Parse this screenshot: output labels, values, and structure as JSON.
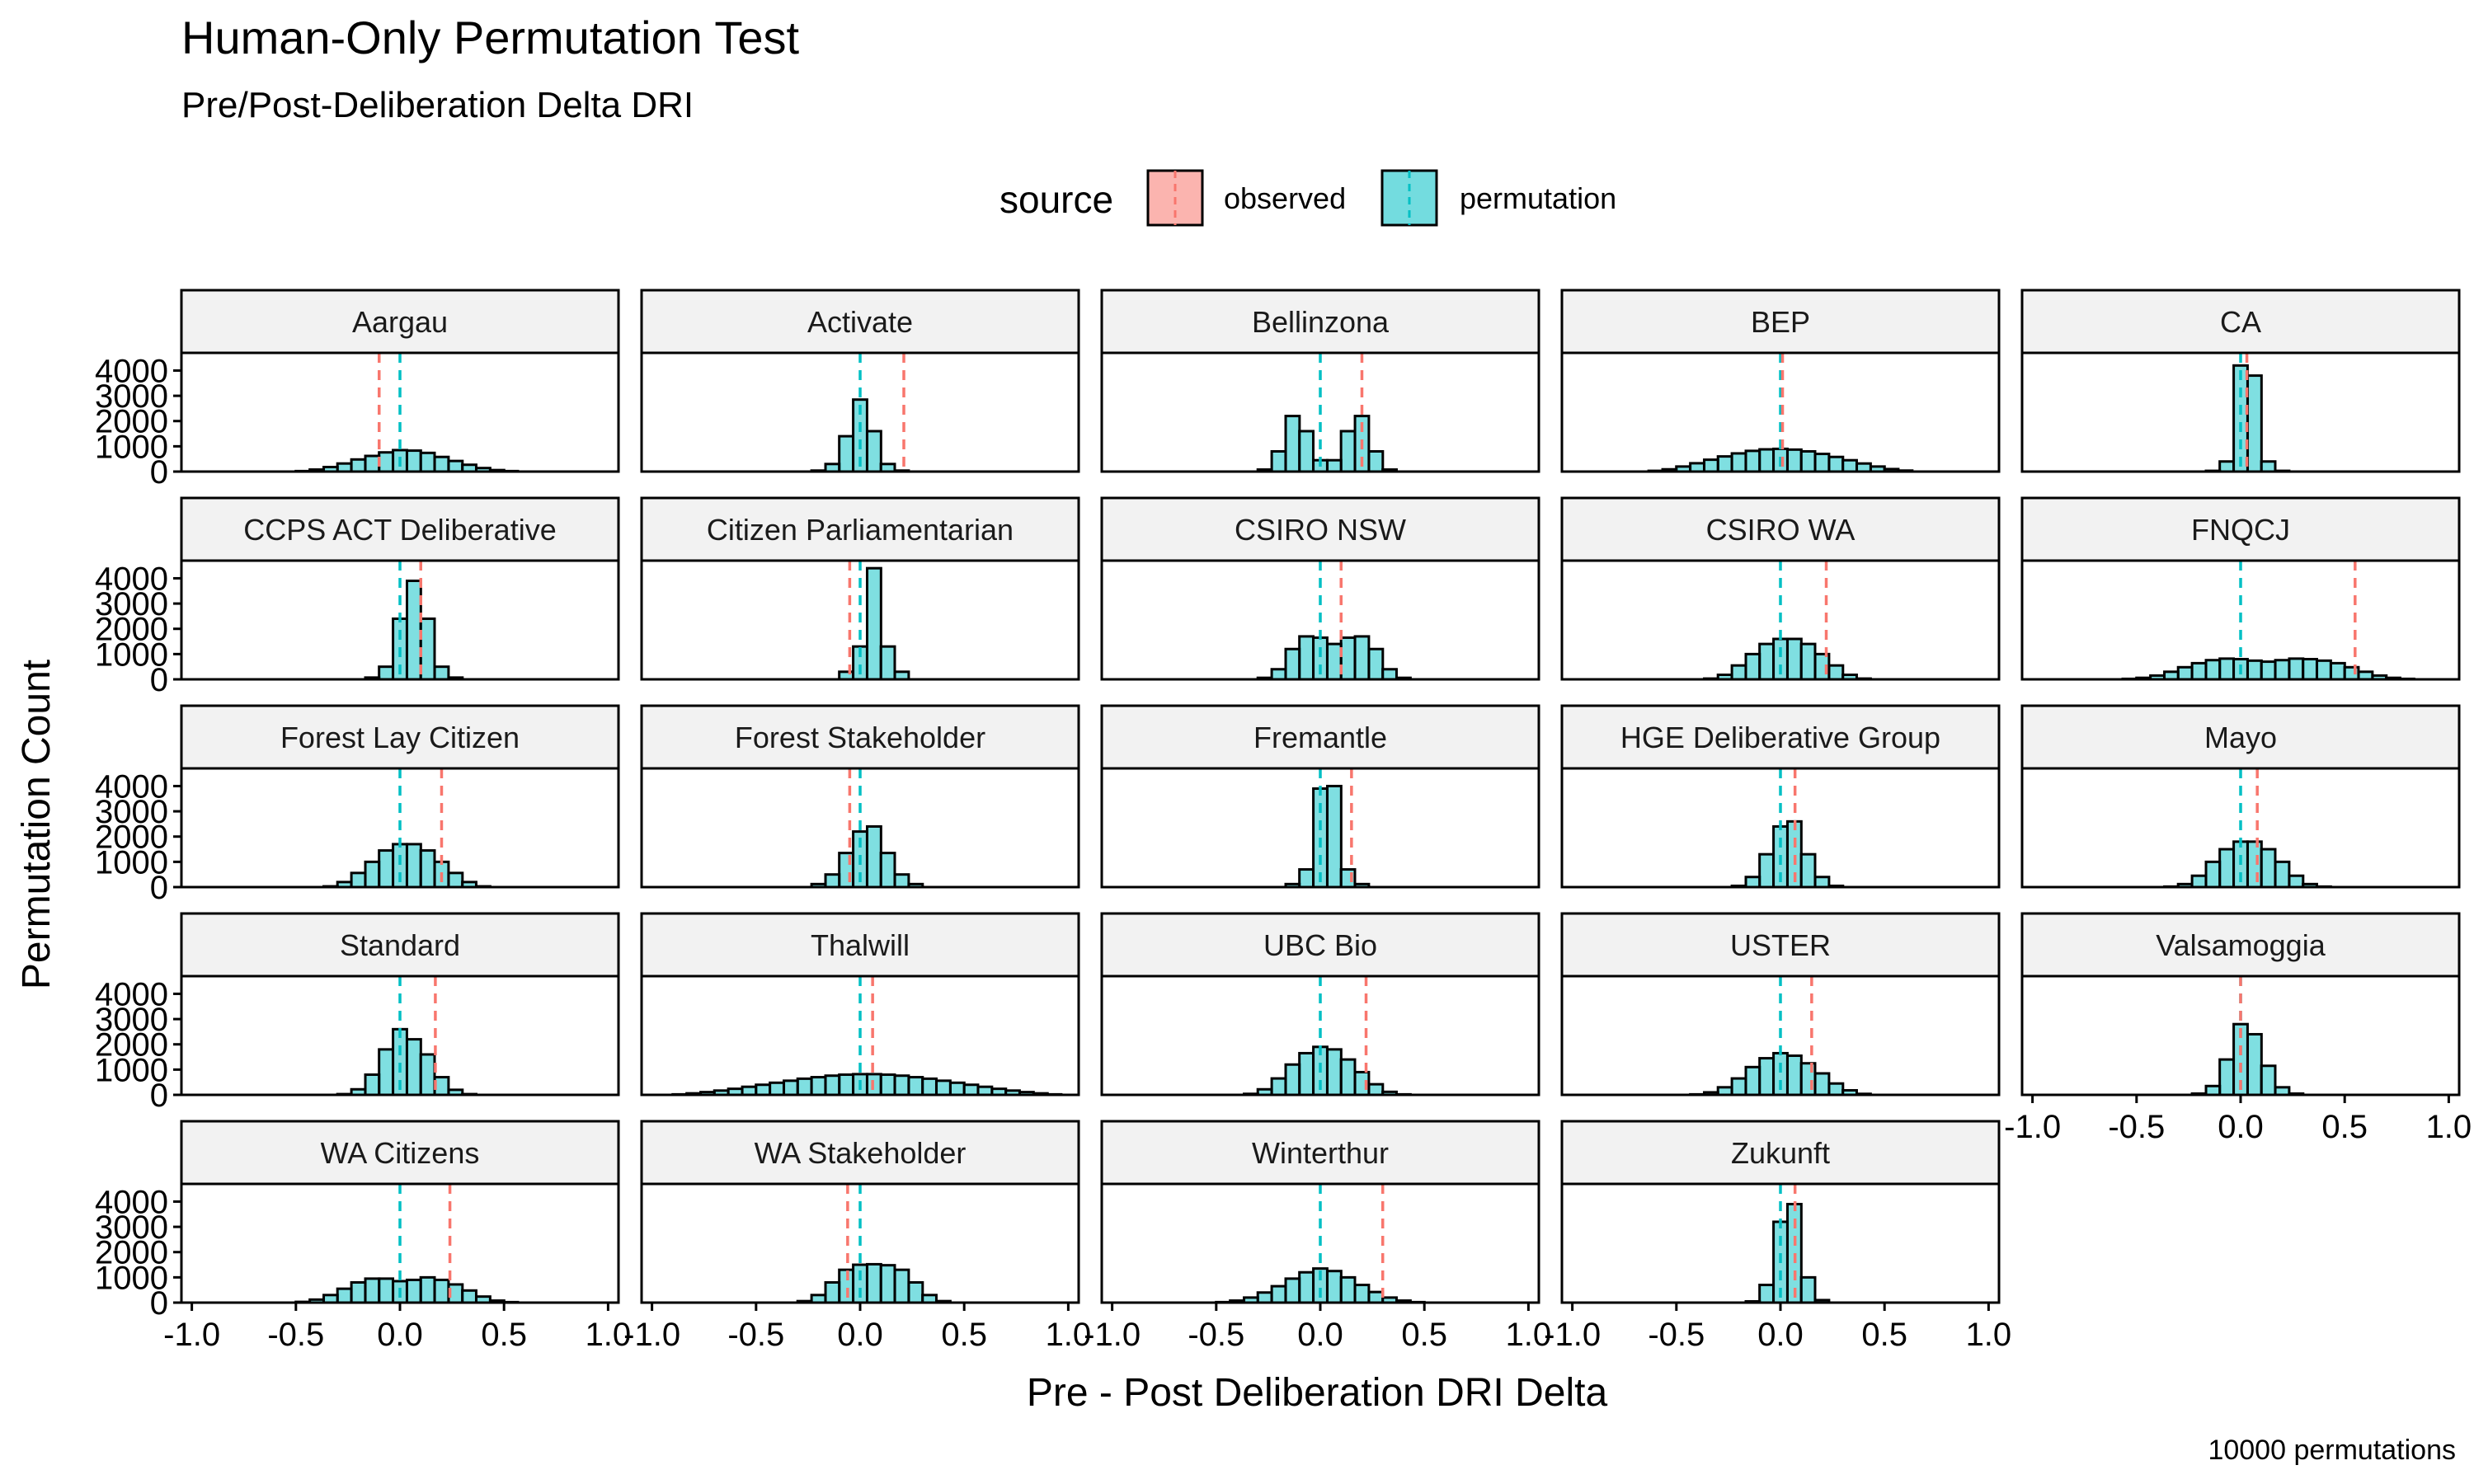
{
  "title": "Human-Only Permutation Test",
  "subtitle": "Pre/Post-Deliberation Delta DRI",
  "caption": "10000 permutations",
  "legend": {
    "title": "source",
    "items": [
      {
        "label": "observed",
        "fill": "#F8766D"
      },
      {
        "label": "permutation",
        "fill": "#00BFC4"
      }
    ]
  },
  "colors": {
    "observed": "#F8766D",
    "permutation": "#00BFC4",
    "bar_outline": "#000000",
    "strip_background": "#F2F2F2"
  },
  "chart_data": {
    "type": "histogram",
    "facet_layout": {
      "ncol": 5,
      "nrow": 5
    },
    "xlabel": "Pre - Post Deliberation DRI Delta",
    "ylabel": "Permutation Count",
    "xlim": [
      -1.05,
      1.05
    ],
    "ylim": [
      0,
      4700
    ],
    "x_ticks": [
      -1.0,
      -0.5,
      0.0,
      0.5,
      1.0
    ],
    "x_tick_labels": [
      "-1.0",
      "-0.5",
      "0.0",
      "0.5",
      "1.0"
    ],
    "y_ticks": [
      0,
      1000,
      2000,
      3000,
      4000
    ],
    "y_tick_labels": [
      "0",
      "1000",
      "2000",
      "3000",
      "4000"
    ],
    "bin_width": 0.0667,
    "bin_centers": [
      -1.0,
      -0.933,
      -0.867,
      -0.8,
      -0.733,
      -0.667,
      -0.6,
      -0.533,
      -0.467,
      -0.4,
      -0.333,
      -0.267,
      -0.2,
      -0.133,
      -0.067,
      0.0,
      0.067,
      0.133,
      0.2,
      0.267,
      0.333,
      0.4,
      0.467,
      0.533,
      0.6,
      0.667,
      0.733,
      0.8,
      0.867,
      0.933,
      1.0
    ],
    "facets": [
      {
        "name": "Aargau",
        "observed": -0.1,
        "permutation_mean": 0.0,
        "counts": [
          0,
          0,
          0,
          0,
          0,
          0,
          0,
          0,
          20,
          80,
          180,
          320,
          480,
          620,
          760,
          850,
          830,
          740,
          580,
          420,
          270,
          140,
          60,
          20,
          0,
          0,
          0,
          0,
          0,
          0,
          0
        ]
      },
      {
        "name": "Activate",
        "observed": 0.21,
        "permutation_mean": 0.0,
        "counts": [
          0,
          0,
          0,
          0,
          0,
          0,
          0,
          0,
          0,
          0,
          0,
          0,
          40,
          300,
          1400,
          2850,
          1600,
          300,
          40,
          0,
          0,
          0,
          0,
          0,
          0,
          0,
          0,
          0,
          0,
          0,
          0
        ]
      },
      {
        "name": "Bellinzona",
        "observed": 0.2,
        "permutation_mean": 0.0,
        "counts": [
          0,
          0,
          0,
          0,
          0,
          0,
          0,
          0,
          0,
          0,
          0,
          80,
          800,
          2200,
          1600,
          450,
          450,
          1600,
          2200,
          800,
          80,
          0,
          0,
          0,
          0,
          0,
          0,
          0,
          0,
          0,
          0
        ]
      },
      {
        "name": "BEP",
        "observed": 0.01,
        "permutation_mean": 0.0,
        "counts": [
          0,
          0,
          0,
          0,
          0,
          0,
          30,
          90,
          200,
          330,
          470,
          600,
          720,
          820,
          880,
          900,
          870,
          800,
          700,
          580,
          450,
          320,
          200,
          100,
          40,
          0,
          0,
          0,
          0,
          0,
          0
        ]
      },
      {
        "name": "CA",
        "observed": 0.03,
        "permutation_mean": 0.0,
        "counts": [
          0,
          0,
          0,
          0,
          0,
          0,
          0,
          0,
          0,
          0,
          0,
          0,
          0,
          30,
          400,
          4200,
          3800,
          400,
          30,
          0,
          0,
          0,
          0,
          0,
          0,
          0,
          0,
          0,
          0,
          0,
          0
        ]
      },
      {
        "name": "CCPS ACT Deliberative",
        "observed": 0.1,
        "permutation_mean": 0.0,
        "counts": [
          0,
          0,
          0,
          0,
          0,
          0,
          0,
          0,
          0,
          0,
          0,
          0,
          0,
          70,
          500,
          2400,
          3900,
          2400,
          500,
          70,
          0,
          0,
          0,
          0,
          0,
          0,
          0,
          0,
          0,
          0,
          0
        ]
      },
      {
        "name": "Citizen Parliamentarian",
        "observed": -0.05,
        "permutation_mean": 0.0,
        "counts": [
          0,
          0,
          0,
          0,
          0,
          0,
          0,
          0,
          0,
          0,
          0,
          0,
          0,
          0,
          300,
          1300,
          4400,
          1300,
          300,
          0,
          0,
          0,
          0,
          0,
          0,
          0,
          0,
          0,
          0,
          0,
          0
        ]
      },
      {
        "name": "CSIRO NSW",
        "observed": 0.1,
        "permutation_mean": 0.0,
        "counts": [
          0,
          0,
          0,
          0,
          0,
          0,
          0,
          0,
          0,
          0,
          0,
          60,
          400,
          1200,
          1700,
          1650,
          1400,
          1650,
          1700,
          1200,
          400,
          60,
          0,
          0,
          0,
          0,
          0,
          0,
          0,
          0,
          0
        ]
      },
      {
        "name": "CSIRO WA",
        "observed": 0.22,
        "permutation_mean": 0.0,
        "counts": [
          0,
          0,
          0,
          0,
          0,
          0,
          0,
          0,
          0,
          0,
          30,
          180,
          550,
          1000,
          1400,
          1600,
          1600,
          1400,
          1000,
          550,
          180,
          30,
          0,
          0,
          0,
          0,
          0,
          0,
          0,
          0,
          0
        ]
      },
      {
        "name": "FNQCJ",
        "observed": 0.55,
        "permutation_mean": 0.0,
        "counts": [
          0,
          0,
          0,
          0,
          0,
          0,
          0,
          20,
          60,
          150,
          300,
          480,
          640,
          760,
          820,
          800,
          740,
          700,
          760,
          820,
          800,
          740,
          640,
          480,
          300,
          150,
          60,
          20,
          0,
          0,
          0
        ]
      },
      {
        "name": "Forest Lay Citizen",
        "observed": 0.2,
        "permutation_mean": 0.0,
        "counts": [
          0,
          0,
          0,
          0,
          0,
          0,
          0,
          0,
          0,
          0,
          30,
          200,
          560,
          1000,
          1450,
          1700,
          1700,
          1450,
          1000,
          560,
          200,
          30,
          0,
          0,
          0,
          0,
          0,
          0,
          0,
          0,
          0
        ]
      },
      {
        "name": "Forest Stakeholder",
        "observed": -0.05,
        "permutation_mean": 0.0,
        "counts": [
          0,
          0,
          0,
          0,
          0,
          0,
          0,
          0,
          0,
          0,
          0,
          0,
          120,
          500,
          1350,
          2200,
          2400,
          1350,
          500,
          120,
          0,
          0,
          0,
          0,
          0,
          0,
          0,
          0,
          0,
          0,
          0
        ]
      },
      {
        "name": "Fremantle",
        "observed": 0.15,
        "permutation_mean": 0.0,
        "counts": [
          0,
          0,
          0,
          0,
          0,
          0,
          0,
          0,
          0,
          0,
          0,
          0,
          0,
          120,
          700,
          3900,
          4000,
          700,
          120,
          0,
          0,
          0,
          0,
          0,
          0,
          0,
          0,
          0,
          0,
          0,
          0
        ]
      },
      {
        "name": "HGE Deliberative Group",
        "observed": 0.07,
        "permutation_mean": 0.0,
        "counts": [
          0,
          0,
          0,
          0,
          0,
          0,
          0,
          0,
          0,
          0,
          0,
          0,
          50,
          400,
          1300,
          2400,
          2600,
          1300,
          400,
          50,
          0,
          0,
          0,
          0,
          0,
          0,
          0,
          0,
          0,
          0,
          0
        ]
      },
      {
        "name": "Mayo",
        "observed": 0.08,
        "permutation_mean": 0.0,
        "counts": [
          0,
          0,
          0,
          0,
          0,
          0,
          0,
          0,
          0,
          0,
          20,
          120,
          450,
          1000,
          1500,
          1800,
          1800,
          1500,
          1000,
          450,
          120,
          20,
          0,
          0,
          0,
          0,
          0,
          0,
          0,
          0,
          0
        ]
      },
      {
        "name": "Standard",
        "observed": 0.17,
        "permutation_mean": 0.0,
        "counts": [
          0,
          0,
          0,
          0,
          0,
          0,
          0,
          0,
          0,
          0,
          0,
          30,
          220,
          800,
          1800,
          2600,
          2200,
          1600,
          700,
          200,
          30,
          0,
          0,
          0,
          0,
          0,
          0,
          0,
          0,
          0,
          0
        ]
      },
      {
        "name": "Thalwill",
        "observed": 0.06,
        "permutation_mean": 0.0,
        "counts": [
          0,
          0,
          20,
          60,
          110,
          170,
          240,
          320,
          400,
          480,
          560,
          640,
          700,
          760,
          800,
          820,
          820,
          800,
          760,
          700,
          640,
          560,
          480,
          400,
          320,
          240,
          170,
          110,
          60,
          20,
          0
        ]
      },
      {
        "name": "UBC Bio",
        "observed": 0.22,
        "permutation_mean": 0.0,
        "counts": [
          0,
          0,
          0,
          0,
          0,
          0,
          0,
          0,
          0,
          0,
          40,
          220,
          650,
          1200,
          1650,
          1900,
          1800,
          1400,
          900,
          420,
          120,
          20,
          0,
          0,
          0,
          0,
          0,
          0,
          0,
          0,
          0
        ]
      },
      {
        "name": "USTER",
        "observed": 0.15,
        "permutation_mean": 0.0,
        "counts": [
          0,
          0,
          0,
          0,
          0,
          0,
          0,
          0,
          0,
          20,
          100,
          300,
          650,
          1100,
          1450,
          1650,
          1550,
          1250,
          850,
          450,
          180,
          40,
          0,
          0,
          0,
          0,
          0,
          0,
          0,
          0,
          0
        ]
      },
      {
        "name": "Valsamoggia",
        "observed": 0.0,
        "permutation_mean": 0.0,
        "counts": [
          0,
          0,
          0,
          0,
          0,
          0,
          0,
          0,
          0,
          0,
          0,
          0,
          50,
          350,
          1400,
          2800,
          2400,
          1150,
          300,
          50,
          0,
          0,
          0,
          0,
          0,
          0,
          0,
          0,
          0,
          0,
          0
        ]
      },
      {
        "name": "WA Citizens",
        "observed": 0.24,
        "permutation_mean": 0.0,
        "counts": [
          0,
          0,
          0,
          0,
          0,
          0,
          0,
          0,
          30,
          120,
          300,
          550,
          800,
          950,
          950,
          850,
          900,
          1000,
          900,
          720,
          480,
          240,
          80,
          20,
          0,
          0,
          0,
          0,
          0,
          0,
          0
        ]
      },
      {
        "name": "WA Stakeholder",
        "observed": -0.06,
        "permutation_mean": 0.0,
        "counts": [
          0,
          0,
          0,
          0,
          0,
          0,
          0,
          0,
          0,
          0,
          0,
          60,
          300,
          800,
          1300,
          1500,
          1520,
          1480,
          1300,
          800,
          300,
          60,
          0,
          0,
          0,
          0,
          0,
          0,
          0,
          0,
          0
        ]
      },
      {
        "name": "Winterthur",
        "observed": 0.3,
        "permutation_mean": 0.0,
        "counts": [
          0,
          0,
          0,
          0,
          0,
          0,
          0,
          0,
          20,
          80,
          200,
          400,
          650,
          950,
          1200,
          1350,
          1250,
          1000,
          700,
          420,
          200,
          80,
          20,
          0,
          0,
          0,
          0,
          0,
          0,
          0,
          0
        ]
      },
      {
        "name": "Zukunft",
        "observed": 0.07,
        "permutation_mean": 0.0,
        "counts": [
          0,
          0,
          0,
          0,
          0,
          0,
          0,
          0,
          0,
          0,
          0,
          0,
          0,
          50,
          700,
          3200,
          3900,
          1000,
          100,
          0,
          0,
          0,
          0,
          0,
          0,
          0,
          0,
          0,
          0,
          0,
          0
        ]
      }
    ]
  }
}
